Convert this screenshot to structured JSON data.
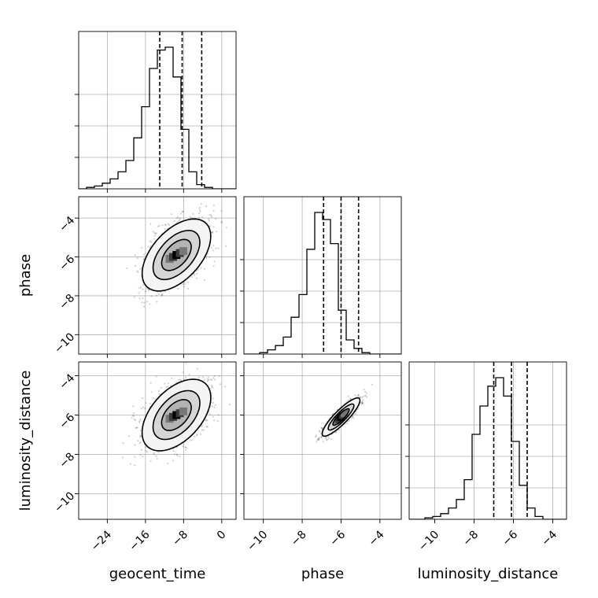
{
  "chart_data": {
    "type": "corner",
    "parameters": [
      "geocent_time",
      "phase",
      "luminosity_distance"
    ],
    "axis_labels": {
      "x": [
        "geocent_time",
        "phase",
        "luminosity_distance"
      ],
      "y": [
        "phase",
        "luminosity_distance"
      ]
    },
    "ranges": {
      "geocent_time": [
        -30,
        3
      ],
      "phase": [
        -11,
        -2.9
      ],
      "luminosity_distance": [
        -11.3,
        -3.3
      ]
    },
    "ticks": {
      "geocent_time": {
        "values": [
          -24,
          -16,
          -8,
          0
        ],
        "labels": [
          "−24",
          "−16",
          "−8",
          "0"
        ]
      },
      "phase": {
        "values": [
          -10,
          -8,
          -6,
          -4
        ],
        "labels": [
          "−10",
          "−8",
          "−6",
          "−4"
        ]
      },
      "luminosity_distance": {
        "values": [
          -10,
          -8,
          -6,
          -4
        ],
        "labels": [
          "−10",
          "−8",
          "−6",
          "−4"
        ]
      }
    },
    "grid": true,
    "histograms": [
      {
        "param": "geocent_time",
        "edges_start": -30,
        "bin_width": 1.65,
        "counts": [
          0,
          0.01,
          0.02,
          0.04,
          0.07,
          0.12,
          0.2,
          0.36,
          0.58,
          0.85,
          0.98,
          1.0,
          0.79,
          0.42,
          0.12,
          0.03,
          0.01,
          0,
          0,
          0
        ],
        "quantiles": [
          -13,
          -8.3,
          -4.2
        ]
      },
      {
        "param": "phase",
        "edges_start": -11,
        "bin_width": 0.405,
        "counts": [
          0,
          0,
          0.01,
          0.03,
          0.06,
          0.12,
          0.26,
          0.42,
          0.74,
          1.0,
          0.95,
          0.78,
          0.31,
          0.1,
          0.04,
          0.01,
          0,
          0,
          0,
          0
        ],
        "quantiles": [
          -6.9,
          -6.0,
          -5.1
        ]
      },
      {
        "param": "luminosity_distance",
        "edges_start": -11.3,
        "bin_width": 0.4,
        "counts": [
          0,
          0,
          0.01,
          0.02,
          0.04,
          0.08,
          0.14,
          0.28,
          0.6,
          0.8,
          0.94,
          1.0,
          0.87,
          0.55,
          0.24,
          0.08,
          0.02,
          0,
          0,
          0
        ],
        "quantiles": [
          -7.0,
          -6.1,
          -5.3
        ]
      }
    ],
    "pairs": [
      {
        "x": "geocent_time",
        "y": "phase",
        "center": [
          -9.5,
          -5.9
        ],
        "slope": 0.14,
        "sd_along": 6.0,
        "sd_perp": 0.55,
        "n_points": 1600
      },
      {
        "x": "geocent_time",
        "y": "luminosity_distance",
        "center": [
          -9.5,
          -6.0
        ],
        "slope": 0.13,
        "sd_along": 6.0,
        "sd_perp": 0.55,
        "n_points": 1600
      },
      {
        "x": "phase",
        "y": "luminosity_distance",
        "center": [
          -6.0,
          -6.1
        ],
        "slope": 1.0,
        "sd_along": 1.1,
        "sd_perp": 0.12,
        "n_points": 1400
      }
    ]
  }
}
